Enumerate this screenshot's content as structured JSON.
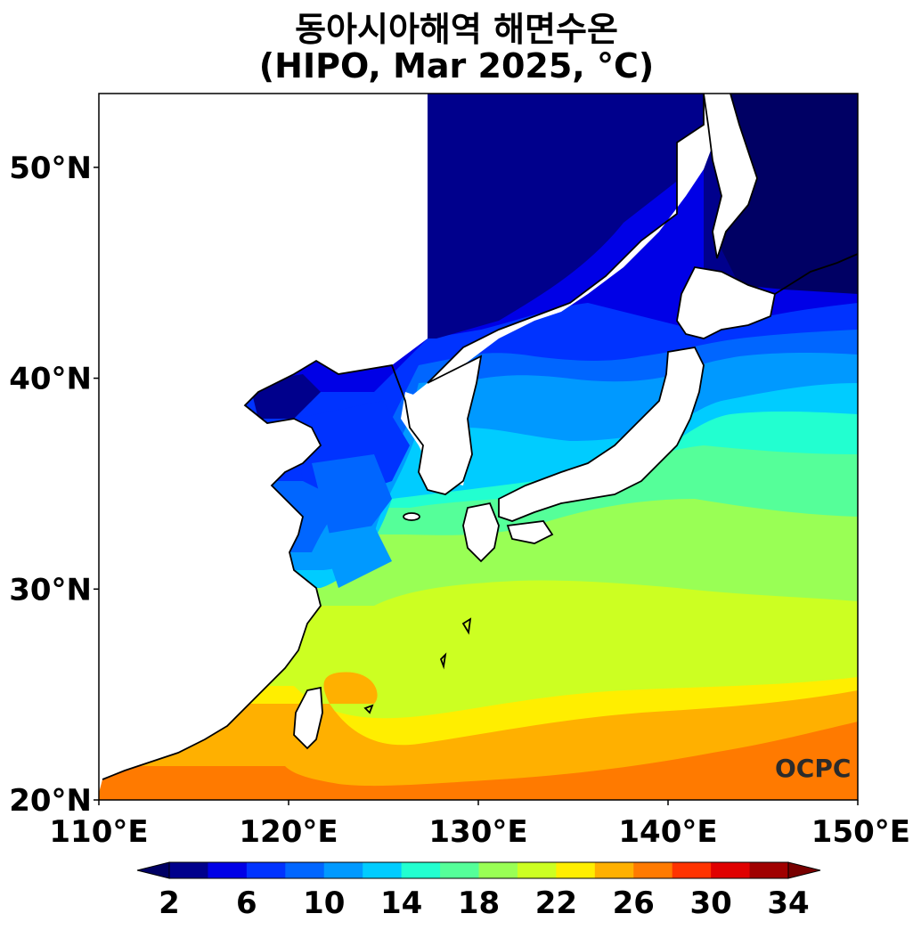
{
  "title": {
    "line1": "동아시아해역 해면수온",
    "line2": "(HIPO, Mar 2025, °C)"
  },
  "map": {
    "lon_range": [
      110,
      150
    ],
    "lat_range": [
      20,
      53.5
    ],
    "lon_ticks": [
      {
        "value": 110,
        "label": "110°E"
      },
      {
        "value": 120,
        "label": "120°E"
      },
      {
        "value": 130,
        "label": "130°E"
      },
      {
        "value": 140,
        "label": "140°E"
      },
      {
        "value": 150,
        "label": "150°E"
      }
    ],
    "lat_ticks": [
      {
        "value": 20,
        "label": "20°N"
      },
      {
        "value": 30,
        "label": "30°N"
      },
      {
        "value": 40,
        "label": "40°N"
      },
      {
        "value": 50,
        "label": "50°N"
      }
    ],
    "logo": "OCPC"
  },
  "colorbar": {
    "levels": [
      2,
      4,
      6,
      8,
      10,
      12,
      14,
      16,
      18,
      20,
      22,
      24,
      26,
      28,
      30,
      32,
      34
    ],
    "colors": [
      "#00008c",
      "#0000e6",
      "#0033ff",
      "#0066ff",
      "#0099ff",
      "#00ccff",
      "#22ffd0",
      "#55ff99",
      "#99ff55",
      "#ccff22",
      "#ffee00",
      "#ffb000",
      "#ff7a00",
      "#ff3300",
      "#e00000",
      "#a00000"
    ],
    "under_color": "#000064",
    "over_color": "#780000",
    "tick_labels": [
      "2",
      "6",
      "10",
      "14",
      "18",
      "22",
      "26",
      "30",
      "34"
    ],
    "tick_values": [
      2,
      6,
      10,
      14,
      18,
      22,
      26,
      30,
      34
    ]
  }
}
